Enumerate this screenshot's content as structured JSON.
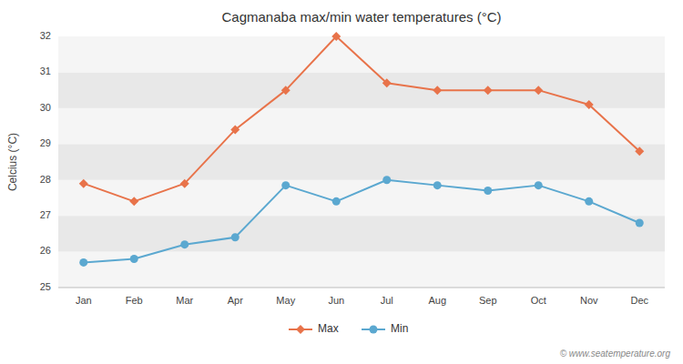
{
  "chart_data": {
    "type": "line",
    "title": "Cagmanaba max/min water temperatures (°C)",
    "ylabel": "Celcius (°C)",
    "categories": [
      "Jan",
      "Feb",
      "Mar",
      "Apr",
      "May",
      "Jun",
      "Jul",
      "Aug",
      "Sep",
      "Oct",
      "Nov",
      "Dec"
    ],
    "series": [
      {
        "name": "Max",
        "color": "#e8734a",
        "marker": "diamond",
        "values": [
          27.9,
          27.4,
          27.9,
          29.4,
          30.5,
          32.0,
          30.7,
          30.5,
          30.5,
          30.5,
          30.1,
          28.8
        ]
      },
      {
        "name": "Min",
        "color": "#5ba8d0",
        "marker": "circle",
        "values": [
          25.7,
          25.8,
          26.2,
          26.4,
          27.85,
          27.4,
          28.0,
          27.85,
          27.7,
          27.85,
          27.4,
          26.8
        ]
      }
    ],
    "ylim": [
      25,
      32
    ],
    "yticks": [
      25,
      26,
      27,
      28,
      29,
      30,
      31,
      32
    ],
    "grid": false,
    "legend": "bottom",
    "annotations": [
      "© www.seatemperature.org"
    ]
  }
}
